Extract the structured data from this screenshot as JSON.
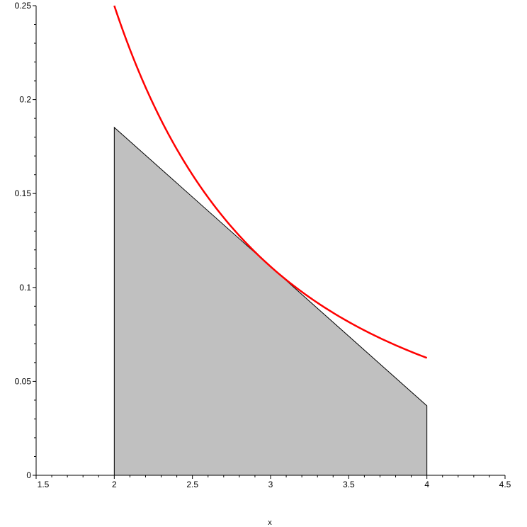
{
  "chart_data": {
    "type": "line",
    "title": "",
    "xlabel": "x",
    "ylabel": "",
    "xlim": [
      1.5,
      4.5
    ],
    "ylim": [
      0,
      0.25
    ],
    "grid": false,
    "x_ticks": [
      "1.5",
      "2",
      "2.5",
      "3",
      "3.5",
      "4",
      "4.5"
    ],
    "y_ticks": [
      "0",
      "0.05",
      "0.1",
      "0.15",
      "0.2",
      "0.25"
    ],
    "series": [
      {
        "kind": "curve",
        "expression": "1/x^2",
        "color": "#ff0000",
        "x": [
          2,
          2.25,
          2.5,
          2.75,
          3,
          3.25,
          3.5,
          3.75,
          4
        ],
        "y": [
          0.25,
          0.1975,
          0.16,
          0.1322,
          0.1111,
          0.0947,
          0.0816,
          0.0711,
          0.0625
        ]
      },
      {
        "kind": "filled-region",
        "color": "#c0c0c0",
        "x": [
          2,
          4
        ],
        "y": [
          0.1852,
          0.037
        ]
      }
    ]
  }
}
